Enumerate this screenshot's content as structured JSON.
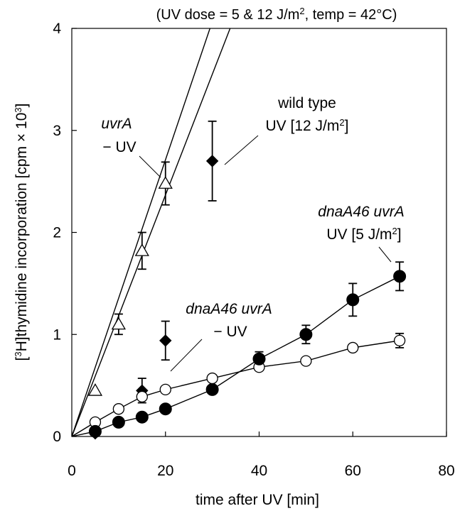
{
  "chart_data": {
    "type": "scatter",
    "title_parts": {
      "prefix": "(UV dose = 5 & 12 J/m",
      "sup": "2",
      "suffix": ", temp = 42°C)"
    },
    "xlabel": "time after UV [min]",
    "ylabel_parts": {
      "open": "[",
      "sup1": "3",
      "mid": "H]thymidine incorporation [cpm × 10",
      "sup2": "3",
      "close": "]"
    },
    "xlim": [
      0,
      80
    ],
    "ylim": [
      0,
      4
    ],
    "x_ticks": [
      0,
      20,
      40,
      60,
      80
    ],
    "y_ticks": [
      0,
      1,
      2,
      3,
      4
    ],
    "grid": false,
    "series": [
      {
        "marker": "open-triangle",
        "x": [
          0,
          5,
          10,
          15,
          20
        ],
        "y": [
          0,
          0.45,
          1.1,
          1.82,
          2.48
        ],
        "err": [
          0,
          0,
          0.1,
          0.18,
          0.21
        ],
        "fit": {
          "x": [
            0,
            29.5
          ],
          "y": [
            0,
            4.0
          ]
        }
      },
      {
        "marker": "filled-diamond",
        "x": [
          0,
          5,
          15,
          20,
          30
        ],
        "y": [
          0,
          0.03,
          0.45,
          0.94,
          2.7
        ],
        "err": [
          0,
          0,
          0.12,
          0.19,
          0.39
        ],
        "fit": {
          "x": [
            0,
            33.8
          ],
          "y": [
            0,
            4.0
          ]
        }
      },
      {
        "marker": "open-circle",
        "x": [
          0,
          5,
          10,
          15,
          20,
          30,
          40,
          50,
          60,
          70
        ],
        "y": [
          0,
          0.14,
          0.27,
          0.39,
          0.46,
          0.57,
          0.68,
          0.74,
          0.87,
          0.94
        ],
        "err": [
          0,
          0,
          0,
          0,
          0,
          0,
          0,
          0,
          0,
          0.07
        ]
      },
      {
        "marker": "filled-circle",
        "x": [
          0,
          5,
          10,
          15,
          20,
          30,
          40,
          50,
          60,
          70
        ],
        "y": [
          0,
          0.05,
          0.14,
          0.19,
          0.27,
          0.46,
          0.76,
          1.0,
          1.34,
          1.57
        ],
        "err": [
          0,
          0,
          0,
          0,
          0,
          0,
          0.07,
          0.09,
          0.16,
          0.14
        ]
      }
    ],
    "annotations": [
      {
        "line1": "uvrA",
        "line1_italic": true,
        "line2": "− UV"
      },
      {
        "line1": "wild type",
        "line1_italic": false,
        "line2_prefix": "UV [12 J/m",
        "line2_sup": "2",
        "line2_suffix": "]"
      },
      {
        "line1": "dnaA46 uvrA",
        "line1_italic": true,
        "line2_prefix": "UV [5 J/m",
        "line2_sup": "2",
        "line2_suffix": "]"
      },
      {
        "line1": "dnaA46 uvrA",
        "line1_italic": true,
        "line2": "− UV"
      }
    ]
  }
}
